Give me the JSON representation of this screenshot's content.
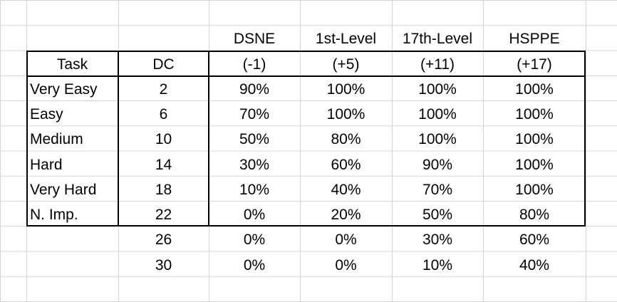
{
  "header_top": [
    "DSNE",
    "1st-Level",
    "17th-Level",
    "HSPPE"
  ],
  "header": [
    "Task",
    "DC",
    "(-1)",
    "(+5)",
    "(+11)",
    "(+17)"
  ],
  "rows": [
    [
      "Very Easy",
      "2",
      "90%",
      "100%",
      "100%",
      "100%"
    ],
    [
      "Easy",
      "6",
      "70%",
      "100%",
      "100%",
      "100%"
    ],
    [
      "Medium",
      "10",
      "50%",
      "80%",
      "100%",
      "100%"
    ],
    [
      "Hard",
      "14",
      "30%",
      "60%",
      "90%",
      "100%"
    ],
    [
      "Very Hard",
      "18",
      "10%",
      "40%",
      "70%",
      "100%"
    ],
    [
      "N. Imp.",
      "22",
      "0%",
      "20%",
      "50%",
      "80%"
    ],
    [
      "",
      "26",
      "0%",
      "0%",
      "30%",
      "60%"
    ],
    [
      "",
      "30",
      "0%",
      "0%",
      "10%",
      "40%"
    ]
  ]
}
